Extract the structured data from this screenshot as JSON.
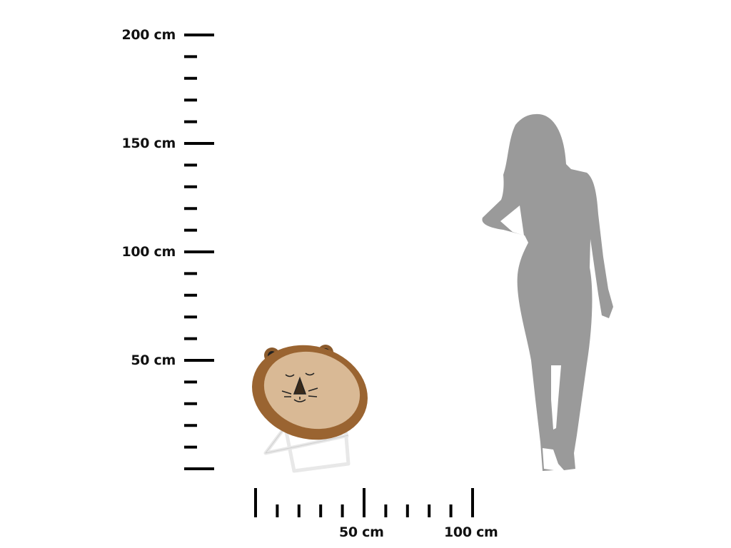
{
  "vertical_scale": {
    "labels": [
      "200 cm",
      "150 cm",
      "100 cm",
      "50 cm"
    ],
    "major_values_cm": [
      200,
      150,
      100,
      50,
      0
    ],
    "minor_step_cm": 10
  },
  "horizontal_scale": {
    "labels": [
      "50 cm",
      "100 cm"
    ],
    "major_values_cm": [
      0,
      50,
      100
    ],
    "minor_step_cm": 10
  },
  "product": {
    "name": "lion-chair",
    "colors": {
      "fur": "#9a6431",
      "seat": "#d9b995",
      "frame": "#f2f2f2"
    }
  },
  "reference": {
    "name": "woman-silhouette",
    "color": "#9a9a9a"
  },
  "colors": {
    "ticks": "#000000",
    "text": "#111111"
  }
}
